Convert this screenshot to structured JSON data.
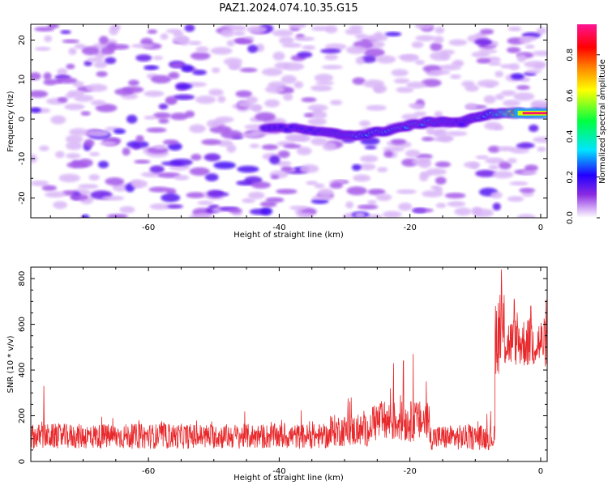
{
  "title": "PAZ1.2024.074.10.35.G15",
  "chart_data": [
    {
      "type": "heatmap",
      "xlabel": "Height of straight line (km)",
      "ylabel": "Frequency (Hz)",
      "xlim": [
        -78,
        1
      ],
      "ylim": [
        -25,
        24
      ],
      "xticks": [
        -60,
        -40,
        -20,
        0
      ],
      "yticks": [
        -20,
        -10,
        0,
        10,
        20
      ],
      "colorbar": {
        "label": "Normalized spectral amplitude",
        "range": [
          0,
          0.95
        ],
        "ticks": [
          0.0,
          0.2,
          0.4,
          0.6,
          0.8
        ],
        "colors": [
          "#ffffff",
          "#d2a8f5",
          "#8a2be2",
          "#2200ff",
          "#00e5ff",
          "#00ff40",
          "#ffff00",
          "#ff8000",
          "#ff0000",
          "#ff1493"
        ]
      },
      "signal_track": {
        "x": [
          -42,
          -37,
          -33,
          -30,
          -27,
          -24,
          -21,
          -18,
          -15,
          -12,
          -9,
          -6,
          -3,
          1
        ],
        "freq": [
          -2,
          -2.5,
          -3.5,
          -4,
          -4,
          -3,
          -2,
          -1,
          -0.5,
          -1,
          1,
          1.5,
          1.5,
          1.5
        ],
        "amplitude": [
          0.18,
          0.2,
          0.22,
          0.25,
          0.35,
          0.35,
          0.3,
          0.3,
          0.25,
          0.2,
          0.3,
          0.45,
          0.8,
          0.95
        ]
      }
    },
    {
      "type": "line",
      "xlabel": "Height of straight line (km)",
      "ylabel": "SNR (10 * v/v)",
      "xlim": [
        -78,
        1
      ],
      "ylim": [
        0,
        850
      ],
      "xticks": [
        -60,
        -40,
        -20,
        0
      ],
      "yticks": [
        0,
        200,
        400,
        600,
        800
      ],
      "color": "#e8282b",
      "segments": [
        {
          "x0": -78,
          "x1": -32,
          "mean": 110,
          "spread": 55
        },
        {
          "x0": -32,
          "x1": -26,
          "mean": 135,
          "spread": 70
        },
        {
          "x0": -26,
          "x1": -17,
          "mean": 175,
          "spread": 90
        },
        {
          "x0": -17,
          "x1": -7,
          "mean": 105,
          "spread": 55
        },
        {
          "x0": -7,
          "x1": -5.5,
          "mean": 560,
          "spread": 180
        },
        {
          "x0": -5.5,
          "x1": 1,
          "mean": 520,
          "spread": 110
        }
      ],
      "peaks": [
        {
          "x": -76,
          "y": 330
        },
        {
          "x": -29,
          "y": 280
        },
        {
          "x": -23,
          "y": 320
        },
        {
          "x": -22.5,
          "y": 430
        },
        {
          "x": -21,
          "y": 440
        },
        {
          "x": -19.5,
          "y": 470
        },
        {
          "x": -17.5,
          "y": 350
        },
        {
          "x": -6,
          "y": 840
        },
        {
          "x": -4,
          "y": 700
        },
        {
          "x": -1.5,
          "y": 680
        }
      ]
    }
  ]
}
